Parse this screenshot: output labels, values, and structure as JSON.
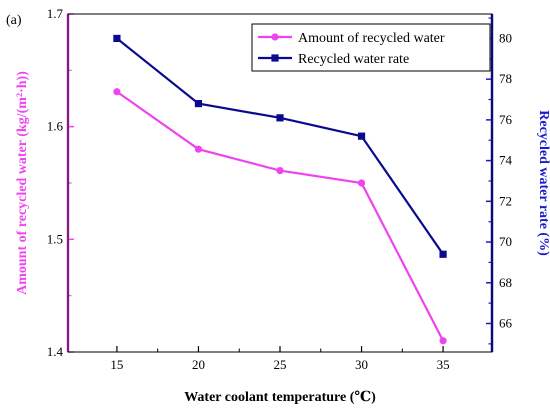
{
  "chart_data": {
    "type": "line",
    "panel_label": "(a)",
    "x": [
      15,
      20,
      25,
      30,
      35
    ],
    "xlabel": "Water coolant temperature (℃)",
    "xlim": [
      12,
      38
    ],
    "xticks": [
      "15",
      "20",
      "25",
      "30",
      "35"
    ],
    "ylabel_left": "Amount of recycled water (kg/(m²·h))",
    "ylim_left": [
      1.4,
      1.7
    ],
    "yticks_left": [
      "1.4",
      "1.5",
      "1.6",
      "1.7"
    ],
    "ylabel_right": "Recycled water rate (%)",
    "ylim_right": [
      64.6,
      81.2
    ],
    "yticks_right": [
      "66",
      "68",
      "70",
      "72",
      "74",
      "76",
      "78",
      "80"
    ],
    "legend_position": "top-right",
    "grid": false,
    "series": [
      {
        "name": "Amount of recycled water",
        "axis": "left",
        "color": "#ee44ee",
        "marker": "circle",
        "values": [
          1.631,
          1.58,
          1.561,
          1.55,
          1.41
        ]
      },
      {
        "name": "Recycled water rate",
        "axis": "right",
        "color": "#0a0a8f",
        "marker": "square",
        "values": [
          80.0,
          76.8,
          76.1,
          75.2,
          69.4
        ]
      }
    ]
  },
  "colors": {
    "left_axis": "#ee44ee",
    "right_axis": "#1a1acc",
    "frame": "#000000"
  }
}
